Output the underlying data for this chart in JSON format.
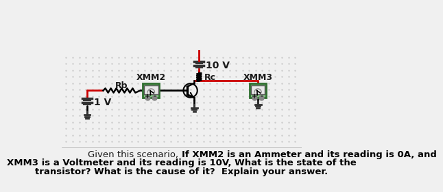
{
  "bg_color": "#f0f0f0",
  "dot_color": "#cccccc",
  "wire_color_red": "#cc0000",
  "wire_color_black": "#000000",
  "component_fill": "#7fbf7f",
  "component_border": "#2f6f2f",
  "text_color_dark": "#1a1a1a",
  "text_bold_color": "#000000",
  "title_text_1": "Given this scenario, ",
  "title_bold_1": "If XMM2 is an Ammeter and its reading is 0A, and",
  "title_bold_2": "XMM3 is a Voltmeter and its reading is 10V, What is the state of the",
  "title_bold_3": "transistor? What is the cause of it?  Explain your answer.",
  "label_10v": "10 V",
  "label_1v": "1 V",
  "label_rb": "Rb",
  "label_rc": "Rc",
  "label_xmm2": "XMM2",
  "label_xmm3": "XMM3"
}
